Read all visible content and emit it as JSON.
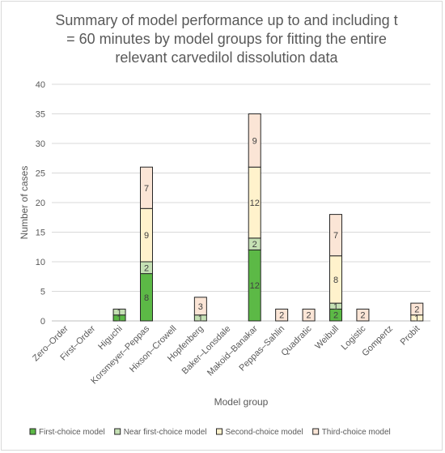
{
  "chart_data": {
    "type": "bar",
    "stacked": true,
    "title": "Summary of model performance up to and including t = 60 minutes by model groups for fitting the entire relevant carvedilol dissolution data",
    "title_lines": [
      "Summary of model performance up to and including t",
      "= 60 minutes by model groups for fitting the entire",
      "relevant carvedilol dissolution data"
    ],
    "xlabel": "Model group",
    "ylabel": "Number of cases",
    "ylim": [
      0,
      40
    ],
    "yticks": [
      0,
      5,
      10,
      15,
      20,
      25,
      30,
      35,
      40
    ],
    "grid": true,
    "legend_position": "bottom",
    "categories": [
      "Zero–Order",
      "First–Order",
      "Higuchi",
      "Korsmeyer–Peppas",
      "Hixson–Crowell",
      "Hopfenberg",
      "Baker–Lonsdale",
      "Makoid–Banakar",
      "Peppas–Sahlin",
      "Quadratic",
      "Weibull",
      "Logistic",
      "Gompertz",
      "Probit"
    ],
    "series": [
      {
        "name": "First-choice model",
        "color": "#5cb946",
        "values": [
          0,
          0,
          1,
          8,
          0,
          0,
          0,
          12,
          0,
          0,
          2,
          0,
          0,
          0
        ]
      },
      {
        "name": "Near first-choice model",
        "color": "#c5e0b4",
        "values": [
          0,
          0,
          1,
          2,
          0,
          1,
          0,
          2,
          0,
          0,
          1,
          0,
          0,
          0
        ]
      },
      {
        "name": "Second-choice model",
        "color": "#fff2cc",
        "values": [
          0,
          0,
          0,
          9,
          0,
          0,
          0,
          12,
          0,
          0,
          8,
          0,
          0,
          1
        ]
      },
      {
        "name": "Third-choice model",
        "color": "#fbe5d6",
        "values": [
          0,
          0,
          0,
          7,
          0,
          3,
          0,
          9,
          2,
          2,
          7,
          2,
          0,
          2
        ]
      }
    ]
  }
}
